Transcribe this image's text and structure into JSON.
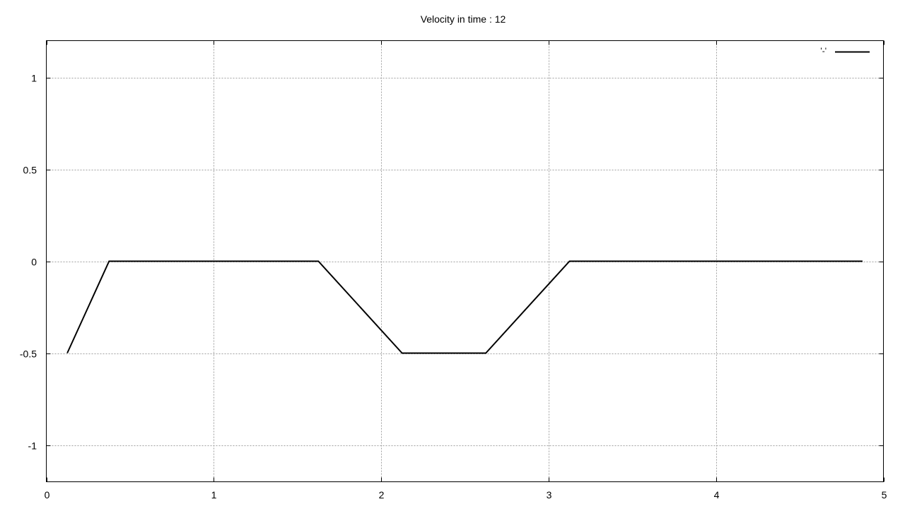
{
  "chart_data": {
    "type": "line",
    "title": "Velocity in time : 12",
    "xlabel": "",
    "ylabel": "",
    "xlim": [
      0,
      5
    ],
    "ylim": [
      -1.2,
      1.2
    ],
    "x_ticks": [
      0,
      1,
      2,
      3,
      4,
      5
    ],
    "y_ticks": [
      -1,
      -0.5,
      0,
      0.5,
      1
    ],
    "x_tick_labels": [
      "0",
      "1",
      "2",
      "3",
      "4",
      "5"
    ],
    "y_tick_labels": [
      "-1",
      "-0.5",
      "0",
      "0.5",
      "1"
    ],
    "grid": true,
    "legend_position": "top-right",
    "series": [
      {
        "name": "'-'",
        "color": "#000000",
        "points": [
          [
            0.125,
            -0.5
          ],
          [
            0.375,
            0.0
          ],
          [
            1.625,
            0.0
          ],
          [
            2.125,
            -0.5
          ],
          [
            2.625,
            -0.5
          ],
          [
            3.125,
            0.0
          ],
          [
            4.875,
            0.0
          ]
        ]
      }
    ]
  }
}
